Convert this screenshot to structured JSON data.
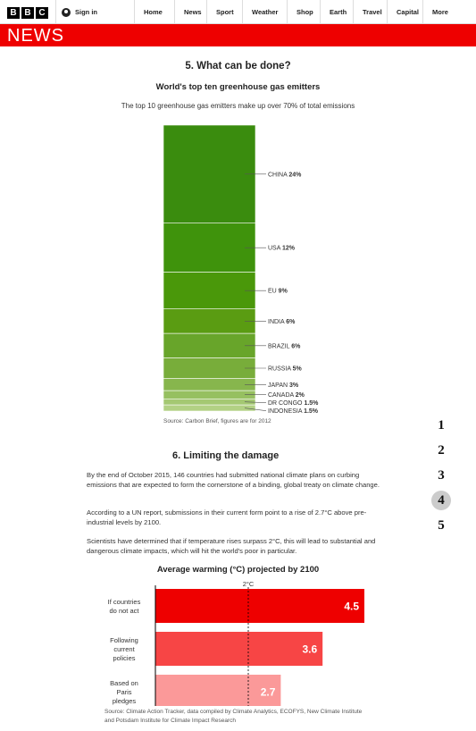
{
  "nav": {
    "logo_letters": [
      "B",
      "B",
      "C"
    ],
    "signin_label": "Sign in",
    "items": [
      "Home",
      "News",
      "Sport",
      "Weather",
      "Shop",
      "Earth",
      "Travel",
      "Capital",
      "More"
    ]
  },
  "brand": {
    "news_label": "NEWS",
    "accent": "#ee0000"
  },
  "section5": {
    "heading": "5. What can be done?",
    "chart_title": "World's top ten greenhouse gas emitters",
    "subtitle": "The top 10 greenhouse gas emitters make up over 70% of total emissions",
    "source": "Source: Carbon Brief, figures are for 2012"
  },
  "section6": {
    "heading": "6. Limiting the damage",
    "paragraphs": [
      "By the end of October 2015, 146 countries had submitted national climate plans on curbing emissions that are expected to form the cornerstone of a binding, global treaty on climate change.",
      "According to a UN report, submissions in their current form point to a rise of 2.7°C above pre-industrial levels by 2100.",
      "Scientists have determined that if temperature rises surpass 2°C, this will lead to substantial and dangerous climate impacts, which will hit the world's poor in particular."
    ],
    "warming_title": "Average warming (°C) projected by 2100",
    "source": "Source: Climate Action Tracker, data compiled by Climate Analytics, ECOFYS, New Climate Institute and Potsdam Institute for Climate Impact Research"
  },
  "pager": {
    "items": [
      "1",
      "2",
      "3",
      "4",
      "5"
    ],
    "active": "4"
  },
  "chart_data": [
    {
      "type": "bar",
      "stacked": true,
      "title": "World's top ten greenhouse gas emitters",
      "categories": [
        "CHINA",
        "USA",
        "EU",
        "INDIA",
        "BRAZIL",
        "RUSSIA",
        "JAPAN",
        "CANADA",
        "DR CONGO",
        "INDONESIA"
      ],
      "values": [
        24,
        12,
        9,
        6,
        6,
        5,
        3,
        2,
        1.5,
        1.5
      ],
      "labels": [
        "24%",
        "12%",
        "9%",
        "6%",
        "6%",
        "5%",
        "3%",
        "2%",
        "1.5%",
        "1.5%"
      ],
      "colors": [
        "#3a8c0e",
        "#3f930c",
        "#4a980a",
        "#5a9c12",
        "#68a52a",
        "#78ad3a",
        "#87b64d",
        "#96c060",
        "#a4c872",
        "#b2d184"
      ]
    },
    {
      "type": "bar",
      "orientation": "horizontal",
      "title": "Average warming (°C) projected by 2100",
      "categories": [
        "If countries do not act",
        "Following current policies",
        "Based on Paris pledges"
      ],
      "category_lines": [
        [
          "If countries",
          "do not act"
        ],
        [
          "Following",
          "current",
          "policies"
        ],
        [
          "Based on",
          "Paris",
          "pledges"
        ]
      ],
      "values": [
        4.5,
        3.6,
        2.7
      ],
      "value_labels": [
        "4.5",
        "3.6",
        "2.7"
      ],
      "colors": [
        "#ee0000",
        "#f74545",
        "#fb9999"
      ],
      "reference_line": {
        "value": 2,
        "label": "2°C"
      },
      "xlim": [
        0,
        4.5
      ]
    }
  ]
}
